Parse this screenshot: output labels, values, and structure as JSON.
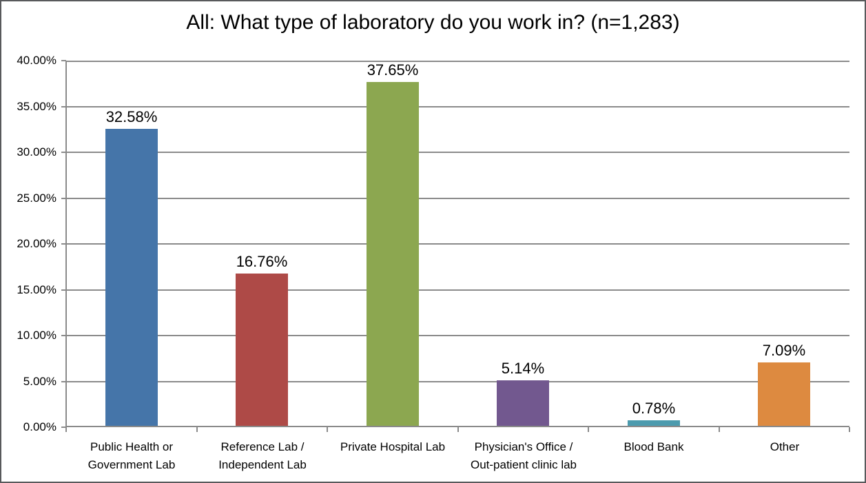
{
  "chart_data": {
    "type": "bar",
    "title": "All: What type of laboratory do you work in? (n=1,283)",
    "categories": [
      "Public Health or Government Lab",
      "Reference Lab / Independent Lab",
      "Private Hospital Lab",
      "Physician's Office / Out-patient clinic lab",
      "Blood Bank",
      "Other"
    ],
    "category_label_lines": [
      [
        "Public Health or",
        "Government Lab"
      ],
      [
        "Reference Lab /",
        "Independent Lab"
      ],
      [
        "Private Hospital Lab"
      ],
      [
        "Physician's Office /",
        "Out-patient clinic lab"
      ],
      [
        "Blood Bank"
      ],
      [
        "Other"
      ]
    ],
    "values": [
      32.58,
      16.76,
      37.65,
      5.14,
      0.78,
      7.09
    ],
    "value_labels": [
      "32.58%",
      "16.76%",
      "37.65%",
      "5.14%",
      "0.78%",
      "7.09%"
    ],
    "bar_colors": [
      "#4575A9",
      "#AE4A47",
      "#8CA750",
      "#72588F",
      "#4C9BAE",
      "#DD8A40"
    ],
    "xlabel": "",
    "ylabel": "",
    "ylim": [
      0,
      40
    ],
    "ytick_step": 5,
    "ytick_labels": [
      "0.00%",
      "5.00%",
      "10.00%",
      "15.00%",
      "20.00%",
      "25.00%",
      "30.00%",
      "35.00%",
      "40.00%"
    ],
    "grid": true,
    "gridline_color": "#8a8a8a",
    "axis_color": "#8a8a8a",
    "text_color": "#000000",
    "legend_position": "none"
  }
}
